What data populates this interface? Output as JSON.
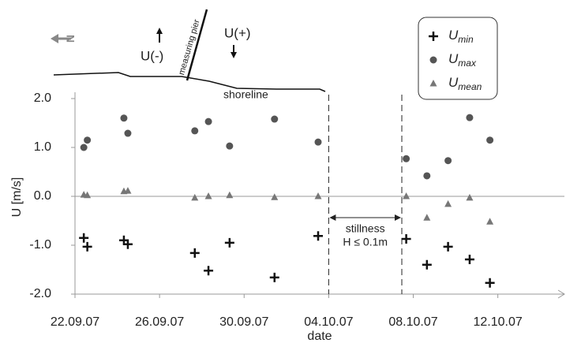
{
  "chart_data": {
    "type": "scatter",
    "ylabel": "U [m/s]",
    "xlabel": "date",
    "xlim": [
      "2007-09-22T00:00",
      "2007-10-15T00:00"
    ],
    "ylim": [
      -2,
      2
    ],
    "xticks": [
      {
        "value": "2007-09-22T00:00",
        "label": "22.09.07"
      },
      {
        "value": "2007-09-26T00:00",
        "label": "26.09.07"
      },
      {
        "value": "2007-09-30T00:00",
        "label": "30.09.07"
      },
      {
        "value": "2007-10-04T00:00",
        "label": "04.10.07"
      },
      {
        "value": "2007-10-08T00:00",
        "label": "08.10.07"
      },
      {
        "value": "2007-10-12T00:00",
        "label": "12.10.07"
      }
    ],
    "yticks": [
      {
        "value": 2,
        "label": "2.0"
      },
      {
        "value": 1,
        "label": "1.0"
      },
      {
        "value": 0,
        "label": "0.0"
      },
      {
        "value": -1,
        "label": "-1.0"
      },
      {
        "value": -2,
        "label": "-2.0"
      }
    ],
    "zero_line": true,
    "series": [
      {
        "name": "Umin",
        "marker": "plus",
        "color": "#111111",
        "x": [
          "2007-09-22T10:00",
          "2007-09-22T14:00",
          "2007-09-24T07:30",
          "2007-09-24T12:00",
          "2007-09-27T16:00",
          "2007-09-28T07:30",
          "2007-09-29T07:30",
          "2007-10-01T10:30",
          "2007-10-03T12:00",
          "2007-10-07T16:00",
          "2007-10-08T15:30",
          "2007-10-09T15:30",
          "2007-10-10T16:00",
          "2007-10-11T15:00"
        ],
        "values": [
          -0.85,
          -1.03,
          -0.9,
          -0.98,
          -1.16,
          -1.52,
          -0.95,
          -1.66,
          -0.81,
          -0.87,
          -1.4,
          -1.03,
          -1.29,
          -1.77
        ]
      },
      {
        "name": "Umax",
        "marker": "circle",
        "color": "#555555",
        "x": [
          "2007-09-22T10:00",
          "2007-09-22T14:00",
          "2007-09-24T07:30",
          "2007-09-24T12:00",
          "2007-09-27T16:00",
          "2007-09-28T07:30",
          "2007-09-29T07:30",
          "2007-10-01T10:30",
          "2007-10-03T12:00",
          "2007-10-07T16:00",
          "2007-10-08T15:30",
          "2007-10-09T15:30",
          "2007-10-10T16:00",
          "2007-10-11T15:00"
        ],
        "values": [
          1.0,
          1.15,
          1.6,
          1.29,
          1.34,
          1.53,
          1.03,
          1.58,
          1.11,
          0.77,
          0.42,
          0.73,
          1.61,
          1.15
        ]
      },
      {
        "name": "Umean",
        "marker": "triangle",
        "color": "#777777",
        "x": [
          "2007-09-22T10:00",
          "2007-09-22T14:00",
          "2007-09-24T07:30",
          "2007-09-24T12:00",
          "2007-09-27T16:00",
          "2007-09-28T07:30",
          "2007-09-29T07:30",
          "2007-10-01T10:30",
          "2007-10-03T12:00",
          "2007-10-07T16:00",
          "2007-10-08T15:30",
          "2007-10-09T15:30",
          "2007-10-10T16:00",
          "2007-10-11T15:00"
        ],
        "values": [
          0.03,
          0.02,
          0.1,
          0.11,
          -0.03,
          0,
          0.02,
          -0.02,
          0,
          0,
          -0.44,
          -0.16,
          -0.03,
          -0.52
        ]
      }
    ],
    "stillness": {
      "x_range": [
        "2007-10-04T00:00",
        "2007-10-07T11:00"
      ],
      "text": "stillness",
      "condition": "H ≤ 0.1m"
    },
    "sketch": {
      "north": "N",
      "u_minus": "U(-)",
      "u_plus": "U(+)",
      "pier": "measuring pier",
      "shoreline": "shoreline"
    }
  }
}
